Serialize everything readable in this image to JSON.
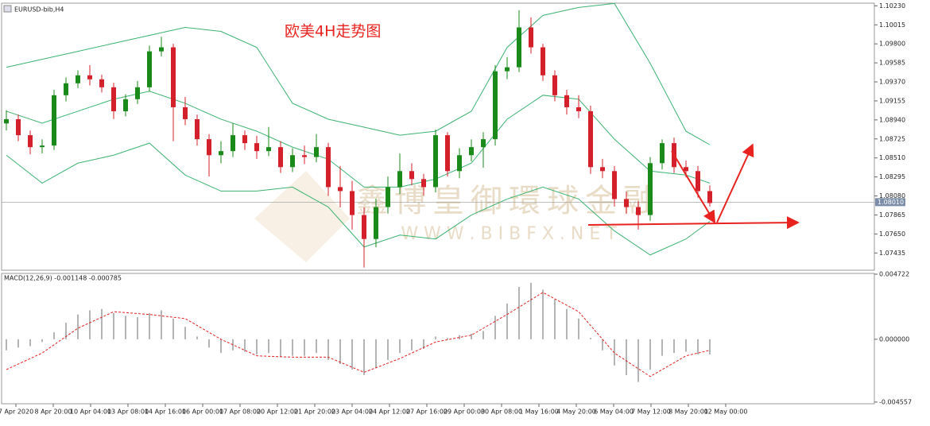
{
  "chart_data": [
    {
      "type": "candlestick",
      "title": "EURUSD-bib,H4",
      "annotation": "欧美4H走势图",
      "watermark": [
        "鑫博皇御環球金融",
        "W W W . B I B F X . N E T"
      ],
      "bull_color": "#1a8a1a",
      "bear_color": "#d4202a",
      "ohlc": [
        [
          1.089,
          1.0905,
          1.0882,
          1.08948
        ],
        [
          1.08948,
          1.09,
          1.087,
          1.08767
        ],
        [
          1.08767,
          1.0882,
          1.0855,
          1.08632
        ],
        [
          1.08632,
          1.0872,
          1.0856,
          1.0865
        ],
        [
          1.0865,
          1.0928,
          1.086,
          1.09219
        ],
        [
          1.09219,
          1.0942,
          1.0915,
          1.09354
        ],
        [
          1.09354,
          1.095,
          1.093,
          1.09444
        ],
        [
          1.09444,
          1.0956,
          1.0933,
          1.09399
        ],
        [
          1.09399,
          1.0945,
          1.0925,
          1.09309
        ],
        [
          1.09309,
          1.0936,
          1.0895,
          1.09038
        ],
        [
          1.09038,
          1.0923,
          1.0898,
          1.09174
        ],
        [
          1.09174,
          1.0938,
          1.0912,
          1.09309
        ],
        [
          1.09309,
          1.0978,
          1.0926,
          1.09715
        ],
        [
          1.09715,
          1.0988,
          1.0966,
          1.09761
        ],
        [
          1.09761,
          1.098,
          1.087,
          1.09083
        ],
        [
          1.09083,
          1.092,
          1.0888,
          1.08948
        ],
        [
          1.08948,
          1.09,
          1.0865,
          1.08722
        ],
        [
          1.08722,
          1.0878,
          1.083,
          1.08541
        ],
        [
          1.08541,
          1.087,
          1.0845,
          1.08587
        ],
        [
          1.08587,
          1.089,
          1.0852,
          1.08767
        ],
        [
          1.08767,
          1.0882,
          1.086,
          1.08677
        ],
        [
          1.08677,
          1.0876,
          1.085,
          1.08587
        ],
        [
          1.08587,
          1.0886,
          1.0853,
          1.08632
        ],
        [
          1.08632,
          1.087,
          1.0834,
          1.08406
        ],
        [
          1.08406,
          1.0862,
          1.0835,
          1.08541
        ],
        [
          1.08541,
          1.0865,
          1.0844,
          1.0852
        ],
        [
          1.0852,
          1.0878,
          1.0846,
          1.08632
        ],
        [
          1.08632,
          1.0868,
          1.0808,
          1.0818
        ],
        [
          1.0818,
          1.0842,
          1.0795,
          1.08135
        ],
        [
          1.08135,
          1.0825,
          1.077,
          1.07864
        ],
        [
          1.07864,
          1.0795,
          1.0727,
          1.07593
        ],
        [
          1.07593,
          1.0805,
          1.075,
          1.07954
        ],
        [
          1.07954,
          1.083,
          1.0788,
          1.0818
        ],
        [
          1.0818,
          1.0856,
          1.081,
          1.08361
        ],
        [
          1.08361,
          1.0845,
          1.082,
          1.08271
        ],
        [
          1.08271,
          1.0833,
          1.0808,
          1.0818
        ],
        [
          1.0818,
          1.0883,
          1.0812,
          1.08767
        ],
        [
          1.08767,
          1.088,
          1.083,
          1.08361
        ],
        [
          1.08361,
          1.0862,
          1.0828,
          1.08541
        ],
        [
          1.08541,
          1.0872,
          1.0847,
          1.08632
        ],
        [
          1.08632,
          1.088,
          1.084,
          1.08722
        ],
        [
          1.08722,
          1.0956,
          1.0865,
          1.0949
        ],
        [
          1.0949,
          1.0965,
          1.094,
          1.09535
        ],
        [
          1.09535,
          1.1018,
          1.0948,
          1.09986
        ],
        [
          1.09986,
          1.101,
          1.0969,
          1.09761
        ],
        [
          1.09761,
          1.098,
          1.0938,
          1.09444
        ],
        [
          1.09444,
          1.095,
          1.0915,
          1.09219
        ],
        [
          1.09219,
          1.0928,
          1.09,
          1.09083
        ],
        [
          1.09083,
          1.0922,
          1.0896,
          1.09038
        ],
        [
          1.09038,
          1.091,
          1.0833,
          1.08406
        ],
        [
          1.08406,
          1.085,
          1.0828,
          1.08361
        ],
        [
          1.08361,
          1.0842,
          1.0796,
          1.08045
        ],
        [
          1.08045,
          1.0813,
          1.0788,
          1.07954
        ],
        [
          1.07954,
          1.0802,
          1.077,
          1.07864
        ],
        [
          1.07864,
          1.0852,
          1.078,
          1.08451
        ],
        [
          1.08451,
          1.0872,
          1.0838,
          1.08677
        ],
        [
          1.08677,
          1.0874,
          1.0834,
          1.08406
        ],
        [
          1.08406,
          1.0848,
          1.0829,
          1.08361
        ],
        [
          1.08361,
          1.0842,
          1.0806,
          1.08135
        ],
        [
          1.08135,
          1.082,
          1.0796,
          1.08
        ]
      ],
      "band_x": [
        0,
        3,
        6,
        9,
        12,
        15,
        18,
        21,
        24,
        27,
        30,
        33,
        36,
        39,
        42,
        45,
        48,
        51,
        54,
        57,
        59
      ],
      "bands": [
        {
          "color": "#3cb371",
          "values": [
            1.09535,
            1.09625,
            1.09715,
            1.09806,
            1.09896,
            1.09986,
            1.09941,
            1.0976,
            1.09128,
            1.08948,
            1.08858,
            1.08767,
            1.08812,
            1.09038,
            1.0976,
            1.10122,
            1.10212,
            1.10257,
            1.0958,
            1.08812,
            1.08659
          ]
        },
        {
          "color": "#3cb371",
          "values": [
            1.09038,
            1.08903,
            1.09038,
            1.09174,
            1.09264,
            1.09128,
            1.08948,
            1.08812,
            1.08632,
            1.08496,
            1.0818,
            1.0818,
            1.08271,
            1.08451,
            1.08948,
            1.09219,
            1.09174,
            1.08722,
            1.08361,
            1.08316,
            1.08225
          ]
        },
        {
          "color": "#3cb371",
          "values": [
            1.08541,
            1.08225,
            1.08451,
            1.08541,
            1.08677,
            1.08316,
            1.08135,
            1.08135,
            1.0818,
            1.07954,
            1.07503,
            1.07638,
            1.07593,
            1.07864,
            1.08045,
            1.0818,
            1.08045,
            1.07684,
            1.07413,
            1.07593,
            1.07792
          ]
        }
      ],
      "last_price": {
        "value": 1.0801,
        "label": "1.08010"
      },
      "ylim": [
        1.0724,
        1.1026
      ],
      "yticks": [
        {
          "value": 1.1023,
          "label": "1.10230"
        },
        1.10015,
        {
          "value": 1.098,
          "label": "1.09800"
        },
        1.09585,
        {
          "value": 1.0937,
          "label": "1.09370"
        },
        1.09155,
        {
          "value": 1.0894,
          "label": "1.08940"
        },
        1.08725,
        {
          "value": 1.0851,
          "label": "1.08510"
        },
        1.08295,
        {
          "value": 1.0808,
          "label": "1.08080"
        },
        1.07865,
        {
          "value": 1.0765,
          "label": "1.07650"
        },
        1.07435
      ],
      "time_labels": [
        "7 Apr 2020",
        "8 Apr 20:00",
        "10 Apr 04:00",
        "13 Apr 08:00",
        "14 Apr 16:00",
        "16 Apr 00:00",
        "17 Apr 08:00",
        "20 Apr 12:00",
        "21 Apr 20:00",
        "23 Apr 04:00",
        "24 Apr 12:00",
        "27 Apr 16:00",
        "29 Apr 00:00",
        "30 Apr 08:00",
        "1 May 16:00",
        "4 May 20:00",
        "6 May 04:00",
        "7 May 12:00",
        "8 May 20:00",
        "12 May 00:00"
      ]
    },
    {
      "type": "macd",
      "title": "MACD(12,26,9) -0.001148 -0.000785",
      "color": "#b4b4b4",
      "values": [
        -0.0008,
        -0.0006,
        -0.0005,
        -0.0002,
        0.0005,
        0.0012,
        0.0018,
        0.0021,
        0.0022,
        0.0019,
        0.0017,
        0.0016,
        0.0019,
        0.0021,
        0.0015,
        0.0009,
        0.0002,
        -0.0006,
        -0.001,
        -0.0008,
        -0.0009,
        -0.0011,
        -0.001,
        -0.0013,
        -0.0012,
        -0.0012,
        -0.001,
        -0.0015,
        -0.0018,
        -0.0022,
        -0.0026,
        -0.0021,
        -0.0015,
        -0.001,
        -0.0008,
        -0.0007,
        0.0002,
        0.0001,
        0.0003,
        0.0004,
        0.0006,
        0.0017,
        0.0026,
        0.0038,
        0.0041,
        0.0036,
        0.0029,
        0.0022,
        0.0015,
        0.0001,
        -0.0008,
        -0.0019,
        -0.0026,
        -0.0031,
        -0.0022,
        -0.0012,
        -0.001,
        -0.0009,
        -0.0011,
        -0.0011
      ],
      "signal": {
        "color": "#e0201e",
        "x": [
          0,
          3,
          6,
          9,
          12,
          15,
          18,
          21,
          24,
          27,
          30,
          33,
          36,
          39,
          42,
          45,
          48,
          51,
          54,
          57,
          59
        ],
        "values": [
          -0.0022,
          -0.001,
          0.0008,
          0.002,
          0.0018,
          0.0015,
          0,
          -0.0012,
          -0.0013,
          -0.0013,
          -0.0024,
          -0.0014,
          -0.0002,
          0.0003,
          0.0018,
          0.0034,
          0.002,
          -0.001,
          -0.0027,
          -0.0012,
          -0.0008
        ]
      },
      "ylim": [
        -0.00468,
        0.00478
      ],
      "yticks": [
        0.004722,
        {
          "value": 0,
          "label": "0.000000"
        },
        -0.004557
      ]
    }
  ]
}
